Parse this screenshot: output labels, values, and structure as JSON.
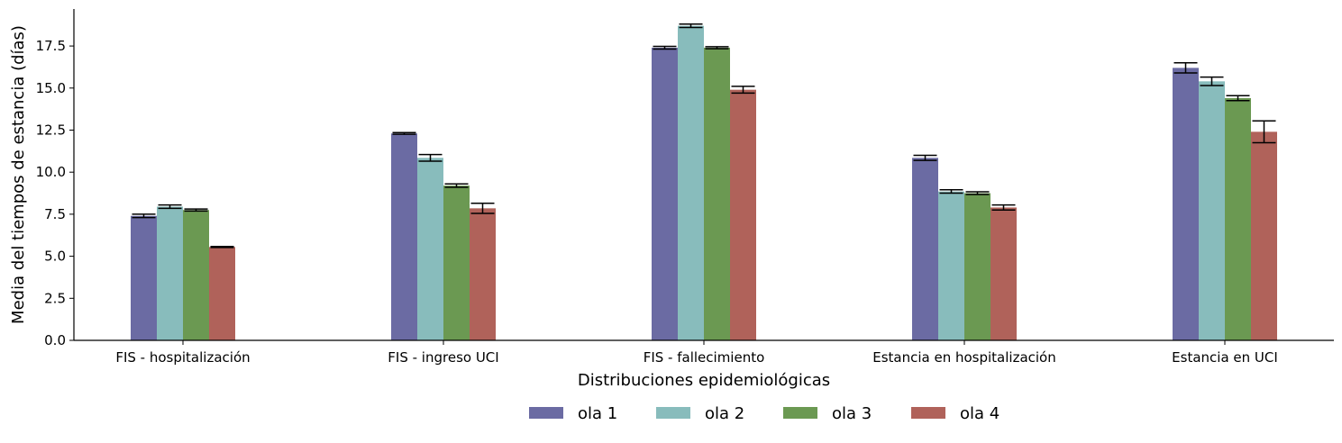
{
  "chart_data": {
    "type": "bar",
    "title": "",
    "xlabel": "Distribuciones epidemiológicas",
    "ylabel": "Media del tiempos de estancia (días)",
    "ylim": [
      0,
      19.7
    ],
    "yticks": [
      0.0,
      2.5,
      5.0,
      7.5,
      10.0,
      12.5,
      15.0,
      17.5
    ],
    "ytick_labels": [
      "0.0",
      "2.5",
      "5.0",
      "7.5",
      "10.0",
      "12.5",
      "15.0",
      "17.5"
    ],
    "categories": [
      "FIS - hospitalización",
      "FIS - ingreso UCI",
      "FIS - fallecimiento",
      "Estancia en hospitalización",
      "Estancia en UCI"
    ],
    "series": [
      {
        "name": "ola 1",
        "color": "#6b6ba3",
        "values": [
          7.4,
          12.3,
          17.4,
          10.85,
          16.2
        ],
        "errors": [
          0.1,
          0.05,
          0.08,
          0.15,
          0.3
        ]
      },
      {
        "name": "ola 2",
        "color": "#88bcbc",
        "values": [
          7.95,
          10.85,
          18.7,
          8.85,
          15.4
        ],
        "errors": [
          0.1,
          0.2,
          0.1,
          0.1,
          0.25
        ]
      },
      {
        "name": "ola 3",
        "color": "#6b9952",
        "values": [
          7.75,
          9.2,
          17.4,
          8.75,
          14.4
        ],
        "errors": [
          0.06,
          0.1,
          0.06,
          0.08,
          0.15
        ]
      },
      {
        "name": "ola 4",
        "color": "#b0625a",
        "values": [
          5.55,
          7.85,
          14.9,
          7.9,
          12.4
        ],
        "errors": [
          0.03,
          0.3,
          0.2,
          0.15,
          0.65
        ]
      }
    ],
    "grid": false,
    "legend_position": "bottom-center",
    "error_bars": true
  }
}
